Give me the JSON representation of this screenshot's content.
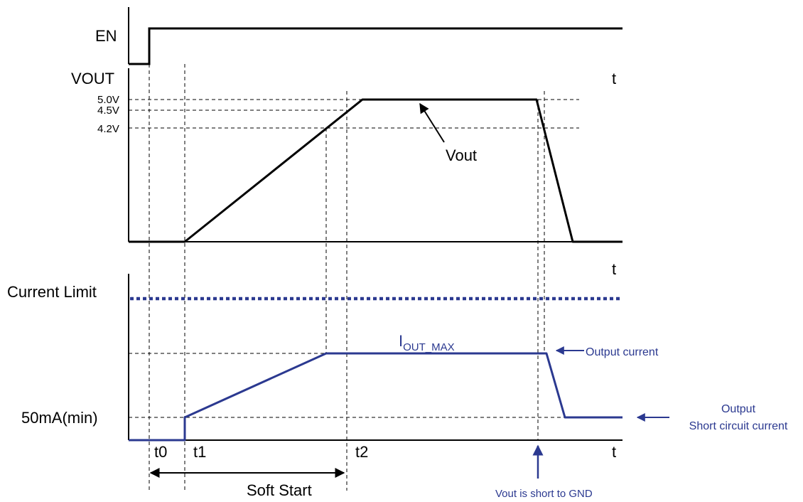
{
  "labels": {
    "en": "EN",
    "vout_axis": "VOUT",
    "t_top": "t",
    "v50": "5.0V",
    "v45": "4.5V",
    "v42": "4.2V",
    "vout_curve": "Vout",
    "t_mid": "t",
    "current_limit": "Current Limit",
    "iout_main": "I",
    "iout_sub": "OUT_MAX",
    "output_current": "Output current",
    "min_current": "50mA(min)",
    "short_line1": "Output",
    "short_line2": "Short circuit current",
    "t0": "t0",
    "t1": "t1",
    "t2": "t2",
    "t_bottom": "t",
    "soft_start": "Soft Start",
    "vout_short": "Vout is short to GND"
  },
  "colors": {
    "voltage_trace": "#000000",
    "current_trace": "#2b3990",
    "axes": "#000000"
  }
}
